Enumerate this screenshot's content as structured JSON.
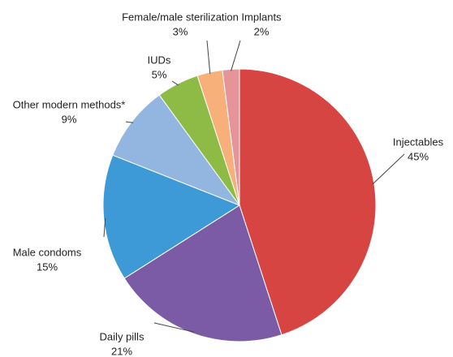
{
  "chart_data": {
    "type": "pie",
    "categories": [
      "Injectables",
      "Daily pills",
      "Male condoms",
      "Other modern methods*",
      "IUDs",
      "Female/male sterilization",
      "Implants"
    ],
    "values": [
      45,
      21,
      15,
      9,
      5,
      3,
      2
    ],
    "value_labels": [
      "45%",
      "21%",
      "15%",
      "9%",
      "5%",
      "3%",
      "2%"
    ],
    "colors": [
      "#d64541",
      "#7b5aa6",
      "#3e9ad6",
      "#93b6e0",
      "#8dbb45",
      "#f7b07a",
      "#e5959a"
    ]
  }
}
